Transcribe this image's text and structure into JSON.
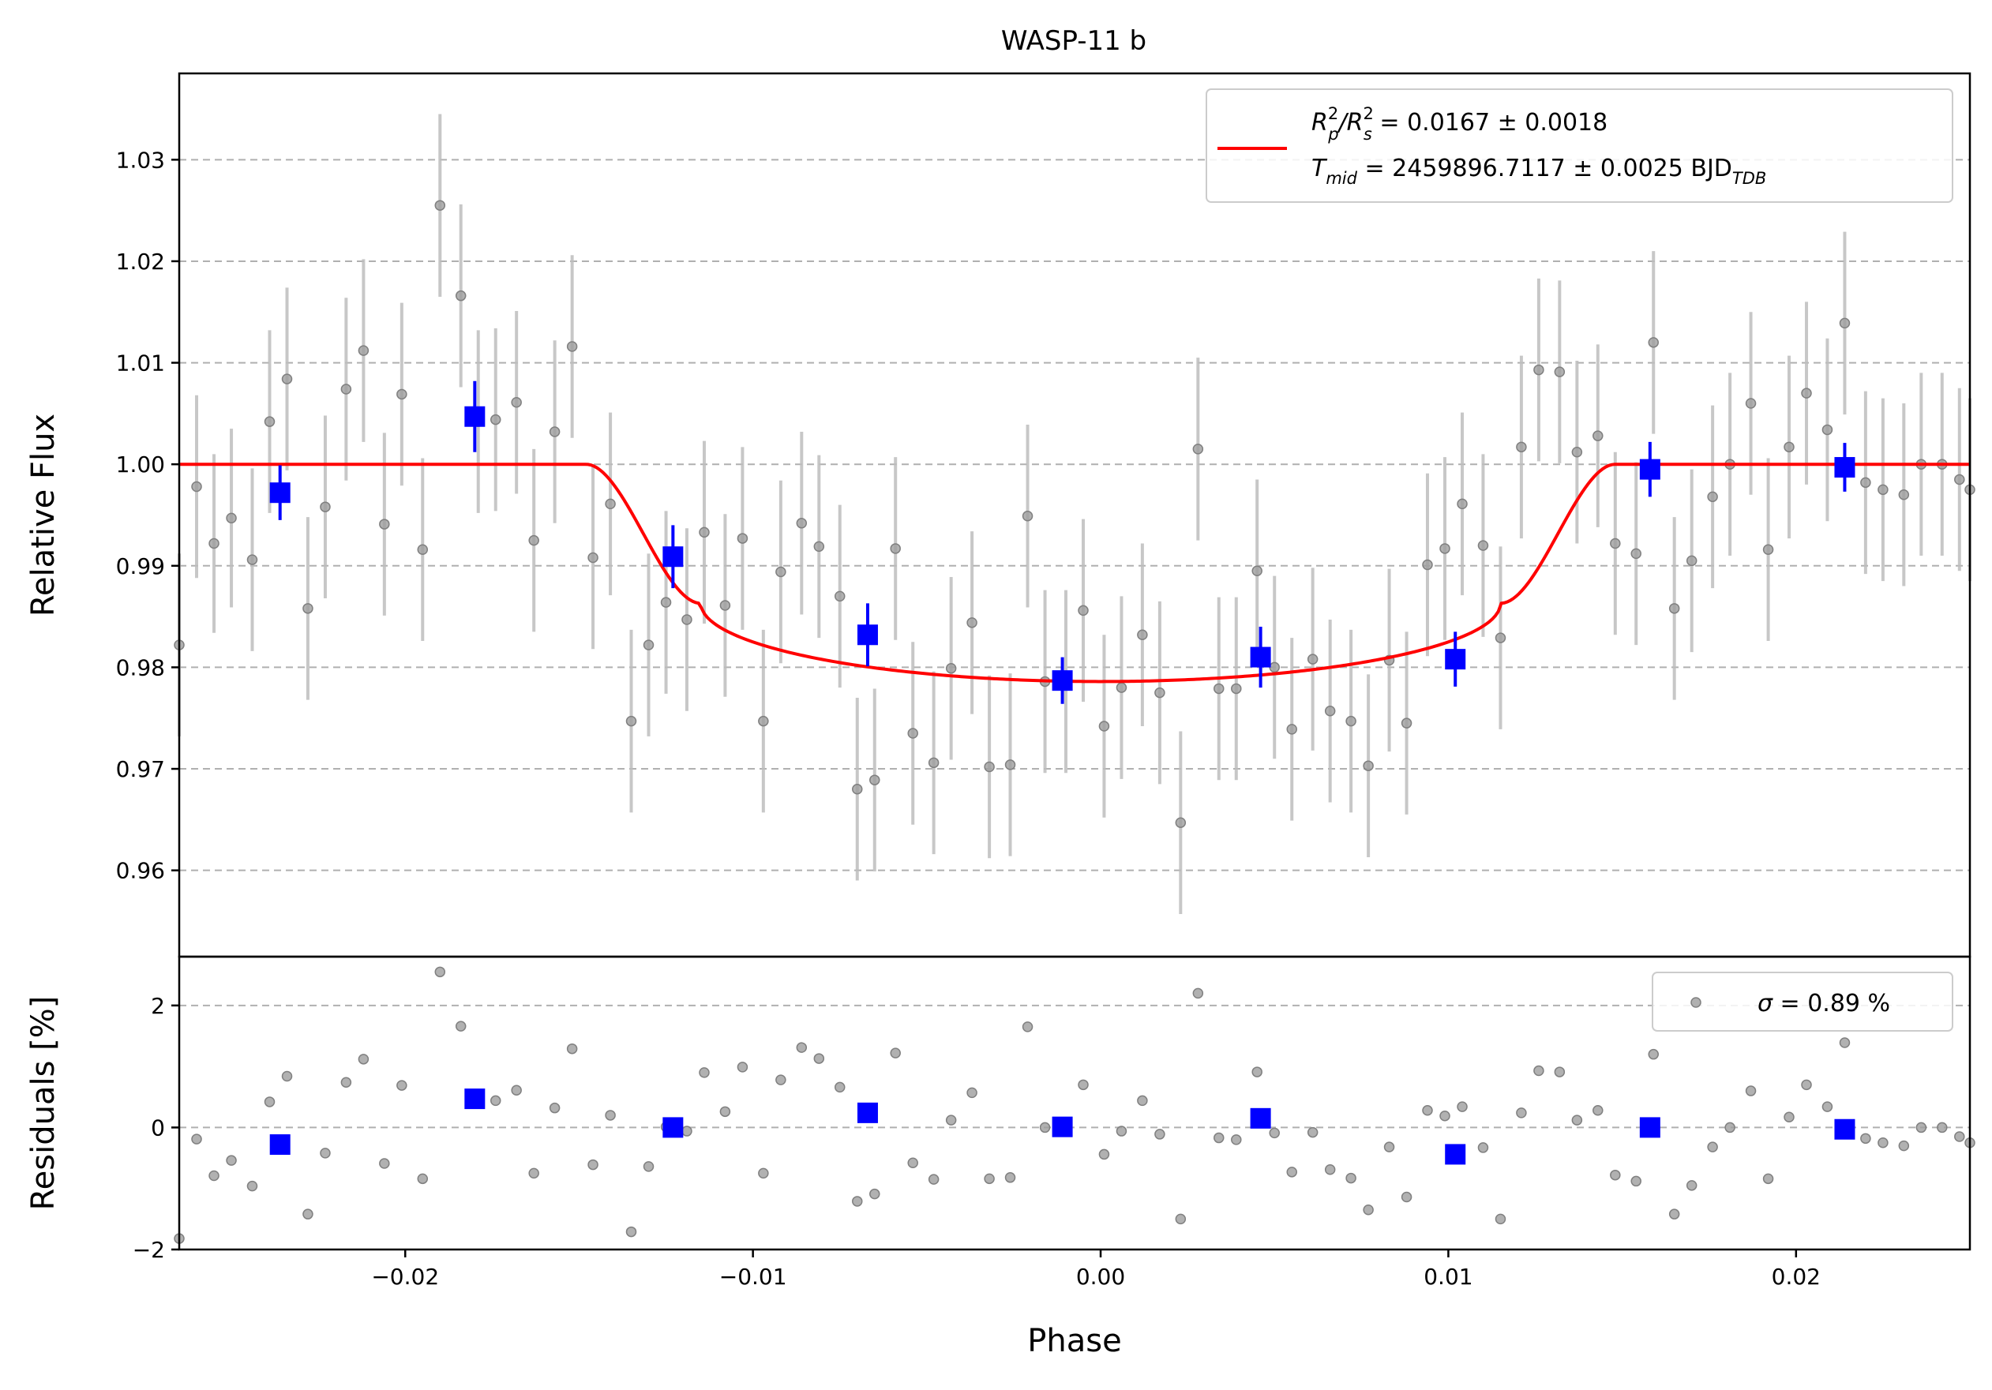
{
  "chart_data": {
    "type": "scatter",
    "title": "WASP-11 b",
    "xlabel": "Phase",
    "top": {
      "ylabel": "Relative Flux",
      "ylim": [
        0.9515,
        1.0385
      ],
      "yticks": [
        0.96,
        0.97,
        0.98,
        0.99,
        1.0,
        1.01,
        1.02,
        1.03
      ],
      "ytick_labels": [
        "0.96",
        "0.97",
        "0.98",
        "0.99",
        "1.00",
        "1.01",
        "1.02",
        "1.03"
      ],
      "grid": "y-dashed",
      "legend": {
        "placement": "upper right",
        "line1_a": "R",
        "line1_a_sup": "2",
        "line1_a_sub": "p",
        "line1_b": "/R",
        "line1_b_sup": "2",
        "line1_b_sub": "s",
        "line1_c": " = 0.0167 ± 0.0018",
        "line2_a": "T",
        "line2_a_sub": "mid",
        "line2_b": " = 2459896.7117 ± 0.0025 BJD",
        "line2_b_sub": "TDB",
        "color": "#ff0000"
      }
    },
    "bottom": {
      "ylabel": "Residuals [%]",
      "ylim": [
        -2,
        2.8
      ],
      "yticks": [
        -2,
        0,
        2
      ],
      "ytick_labels": [
        "−2",
        "0",
        "2"
      ],
      "grid": "y-dashed",
      "legend": {
        "placement": "upper right",
        "sigma_symbol": "σ",
        "sigma_text": " = 0.89 %"
      }
    },
    "xlim": [
      -0.0265,
      0.025
    ],
    "xticks": [
      -0.02,
      -0.01,
      0.0,
      0.01,
      0.02
    ],
    "xtick_labels": [
      "−0.02",
      "−0.01",
      "0.00",
      "0.01",
      "0.02"
    ],
    "colors": {
      "raw": "#9e9e9e",
      "binned": "#0000ff",
      "model": "#ff0000"
    },
    "model": {
      "name": "transit model",
      "baseline": 1.0,
      "min_flux": 0.9786,
      "t1": -0.0148,
      "t2": -0.0115,
      "t3": 0.0115,
      "t4": 0.0148
    },
    "raw_points": {
      "x": [
        -0.0265,
        -0.026,
        -0.0255,
        -0.025,
        -0.0244,
        -0.0239,
        -0.0234,
        -0.0228,
        -0.0223,
        -0.0217,
        -0.0212,
        -0.0206,
        -0.0201,
        -0.0195,
        -0.019,
        -0.0184,
        -0.0179,
        -0.0174,
        -0.0168,
        -0.0163,
        -0.0157,
        -0.0152,
        -0.0146,
        -0.0141,
        -0.0135,
        -0.013,
        -0.0125,
        -0.0119,
        -0.0114,
        -0.0108,
        -0.0103,
        -0.0097,
        -0.0092,
        -0.0086,
        -0.0081,
        -0.0075,
        -0.007,
        -0.0065,
        -0.0059,
        -0.0054,
        -0.0048,
        -0.0043,
        -0.0037,
        -0.0032,
        -0.0026,
        -0.0021,
        -0.0016,
        -0.001,
        -0.0005,
        0.0001,
        0.0006,
        0.0012,
        0.0017,
        0.0023,
        0.0028,
        0.0034,
        0.0039,
        0.0045,
        0.005,
        0.0055,
        0.0061,
        0.0066,
        0.0072,
        0.0077,
        0.0083,
        0.0088,
        0.0094,
        0.0099,
        0.0104,
        0.011,
        0.0115,
        0.0121,
        0.0126,
        0.0132,
        0.0137,
        0.0143,
        0.0148,
        0.0154,
        0.0159,
        0.0165,
        0.017,
        0.0176,
        0.0181,
        0.0187,
        0.0192,
        0.0198,
        0.0203,
        0.0209,
        0.0214,
        0.022,
        0.0225,
        0.0231,
        0.0236,
        0.0242,
        0.0247,
        0.025
      ],
      "y": [
        0.9822,
        0.9978,
        0.9922,
        0.9947,
        0.9906,
        1.0042,
        1.0084,
        0.9858,
        0.9958,
        1.0074,
        1.0112,
        0.9941,
        1.0069,
        0.9916,
        1.0255,
        1.0166,
        1.0042,
        1.0044,
        1.0061,
        0.9925,
        1.0032,
        1.0116,
        0.9908,
        0.9961,
        0.9747,
        0.9822,
        0.9864,
        0.9847,
        0.9933,
        0.9861,
        0.9927,
        0.9747,
        0.9894,
        0.9942,
        0.9919,
        0.987,
        0.968,
        0.9689,
        0.9917,
        0.9735,
        0.9706,
        0.9799,
        0.9844,
        0.9702,
        0.9704,
        0.9949,
        0.9786,
        0.9786,
        0.9856,
        0.9742,
        0.978,
        0.9832,
        0.9775,
        0.9647,
        1.0015,
        0.9779,
        0.9779,
        0.9895,
        0.98,
        0.9739,
        0.9808,
        0.9757,
        0.9747,
        0.9703,
        0.9807,
        0.9745,
        0.9901,
        0.9917,
        0.9961,
        0.992,
        0.9829,
        1.0017,
        1.0093,
        1.0091,
        1.0012,
        1.0028,
        0.9922,
        0.9912,
        1.012,
        0.9858,
        0.9905,
        0.9968,
        1.0,
        1.006,
        0.9916,
        1.0017,
        1.007,
        1.0034,
        1.0139,
        0.9982,
        0.9975,
        0.997,
        1.0,
        1.0,
        0.9985,
        0.9975
      ],
      "err": [
        0.009,
        0.009,
        0.0088,
        0.0088,
        0.009,
        0.009,
        0.009,
        0.009,
        0.009,
        0.009,
        0.009,
        0.009,
        0.009,
        0.009,
        0.009,
        0.009,
        0.009,
        0.009,
        0.009,
        0.009,
        0.009,
        0.009,
        0.009,
        0.009,
        0.009,
        0.009,
        0.009,
        0.009,
        0.009,
        0.009,
        0.009,
        0.009,
        0.009,
        0.009,
        0.009,
        0.009,
        0.009,
        0.009,
        0.009,
        0.009,
        0.009,
        0.009,
        0.009,
        0.009,
        0.009,
        0.009,
        0.009,
        0.009,
        0.009,
        0.009,
        0.009,
        0.009,
        0.009,
        0.009,
        0.009,
        0.009,
        0.009,
        0.009,
        0.009,
        0.009,
        0.009,
        0.009,
        0.009,
        0.009,
        0.009,
        0.009,
        0.009,
        0.009,
        0.009,
        0.009,
        0.009,
        0.009,
        0.009,
        0.009,
        0.009,
        0.009,
        0.009,
        0.009,
        0.009,
        0.009,
        0.009,
        0.009,
        0.009,
        0.009,
        0.009,
        0.009,
        0.009,
        0.009,
        0.009,
        0.009,
        0.009,
        0.009,
        0.009,
        0.009,
        0.009,
        0.009
      ]
    },
    "binned_points": {
      "x": [
        -0.0236,
        -0.018,
        -0.0123,
        -0.0067,
        -0.0011,
        0.0046,
        0.0102,
        0.0158,
        0.0214
      ],
      "y": [
        0.9972,
        1.0047,
        0.9909,
        0.9832,
        0.9787,
        0.981,
        0.9808,
        0.9995,
        0.9997
      ],
      "err": [
        0.0027,
        0.0035,
        0.0031,
        0.0031,
        0.0023,
        0.003,
        0.0027,
        0.0027,
        0.0024
      ]
    },
    "raw_residuals": {
      "y": [
        -1.82,
        -0.19,
        -0.79,
        -0.54,
        -0.96,
        0.42,
        0.84,
        -1.42,
        -0.42,
        0.74,
        1.12,
        -0.59,
        0.69,
        -0.84,
        2.55,
        1.66,
        0.42,
        0.44,
        0.61,
        -0.75,
        0.32,
        1.29,
        -0.61,
        0.2,
        -1.71,
        -0.64,
        0.01,
        -0.06,
        0.9,
        0.26,
        0.99,
        -0.75,
        0.78,
        1.31,
        1.13,
        0.66,
        -1.21,
        -1.09,
        1.22,
        -0.58,
        -0.85,
        0.12,
        0.57,
        -0.84,
        -0.82,
        1.65,
        0.0,
        0.0,
        0.7,
        -0.44,
        -0.06,
        0.44,
        -0.11,
        -1.5,
        2.2,
        -0.17,
        -0.2,
        0.91,
        -0.09,
        -0.73,
        -0.08,
        -0.69,
        -0.83,
        -1.35,
        -0.32,
        -1.14,
        0.28,
        0.19,
        0.34,
        -0.33,
        -1.5,
        0.24,
        0.93,
        0.91,
        0.12,
        0.28,
        -0.78,
        -0.88,
        1.2,
        -1.42,
        -0.95,
        -0.32,
        0.0,
        0.6,
        -0.84,
        0.17,
        0.7,
        0.34,
        1.39,
        -0.18,
        -0.25,
        -0.3,
        0.0,
        0.0,
        -0.15,
        -0.25
      ]
    },
    "binned_residuals": {
      "y": [
        -0.28,
        0.47,
        0.0,
        0.24,
        0.01,
        0.15,
        -0.44,
        0.0,
        -0.03
      ]
    }
  }
}
